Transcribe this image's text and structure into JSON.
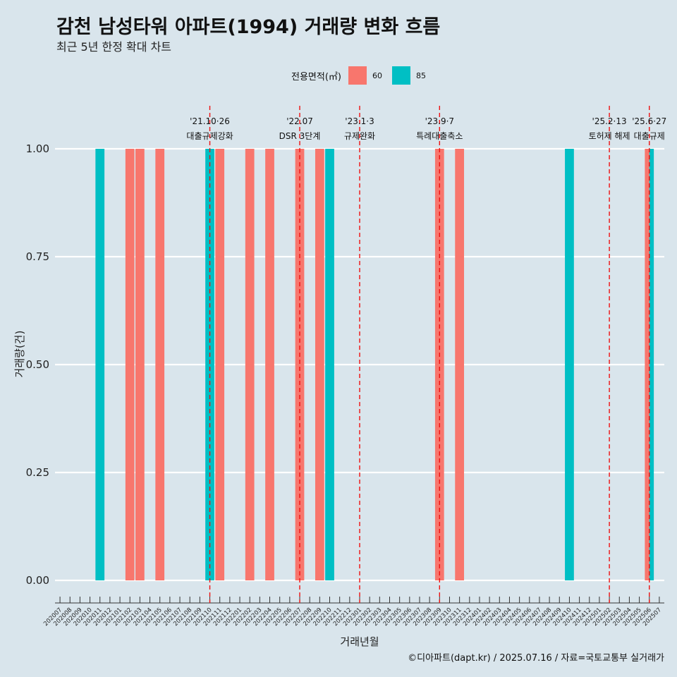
{
  "title": "감천 남성타워 아파트(1994) 거래량 변화 흐름",
  "subtitle": "최근 5년 한정 확대 차트",
  "caption": "©디아파트(dapt.kr) / 2025.07.16 / 자료=국토교통부 실거래가",
  "legend": {
    "title": "전용면적(㎡)",
    "items": [
      {
        "label": "60",
        "color": "#f8766d"
      },
      {
        "label": "85",
        "color": "#00bfc4"
      }
    ]
  },
  "chart_data": {
    "type": "bar",
    "xlabel": "거래년월",
    "ylabel": "거래량(건)",
    "ylim": [
      0,
      1
    ],
    "yticks": [
      "0.00",
      "0.25",
      "0.50",
      "0.75",
      "1.00"
    ],
    "categories": [
      "202007",
      "202008",
      "202009",
      "202010",
      "202011",
      "202012",
      "202101",
      "202102",
      "202103",
      "202104",
      "202105",
      "202106",
      "202107",
      "202108",
      "202109",
      "202110",
      "202111",
      "202112",
      "202201",
      "202202",
      "202203",
      "202204",
      "202205",
      "202206",
      "202207",
      "202208",
      "202209",
      "202210",
      "202211",
      "202212",
      "202301",
      "202302",
      "202303",
      "202304",
      "202305",
      "202306",
      "202307",
      "202308",
      "202309",
      "202310",
      "202311",
      "202312",
      "202401",
      "202402",
      "202403",
      "202404",
      "202405",
      "202406",
      "202407",
      "202408",
      "202409",
      "202410",
      "202411",
      "202412",
      "202501",
      "202502",
      "202503",
      "202504",
      "202505",
      "202506",
      "202507"
    ],
    "series": [
      {
        "name": "60",
        "color": "#f8766d",
        "bars": [
          {
            "x": "202102",
            "value": 1
          },
          {
            "x": "202103",
            "value": 1
          },
          {
            "x": "202105",
            "value": 1
          },
          {
            "x": "202111",
            "value": 1
          },
          {
            "x": "202202",
            "value": 1
          },
          {
            "x": "202204",
            "value": 1
          },
          {
            "x": "202207",
            "value": 1
          },
          {
            "x": "202209",
            "value": 1
          },
          {
            "x": "202309",
            "value": 1
          },
          {
            "x": "202311",
            "value": 1
          },
          {
            "x": "202506",
            "value": 1
          }
        ]
      },
      {
        "name": "85",
        "color": "#00bfc4",
        "bars": [
          {
            "x": "202011",
            "value": 1
          },
          {
            "x": "202110",
            "value": 1
          },
          {
            "x": "202210",
            "value": 1
          },
          {
            "x": "202410",
            "value": 1
          },
          {
            "x": "202506",
            "value": 1
          }
        ]
      }
    ],
    "annotations": [
      {
        "x": "202110",
        "date": "'21.10·26",
        "text": "대출규제강화"
      },
      {
        "x": "202207",
        "date": "'22.07",
        "text": "DSR 3단계"
      },
      {
        "x": "202301",
        "date": "'23.1·3",
        "text": "규제완화"
      },
      {
        "x": "202309",
        "date": "'23.9·7",
        "text": "특례대출축소"
      },
      {
        "x": "202502",
        "date": "'25.2·13",
        "text": "토허제 해제"
      },
      {
        "x": "202506",
        "date": "'25.6·27",
        "text": "대출규제"
      }
    ]
  }
}
